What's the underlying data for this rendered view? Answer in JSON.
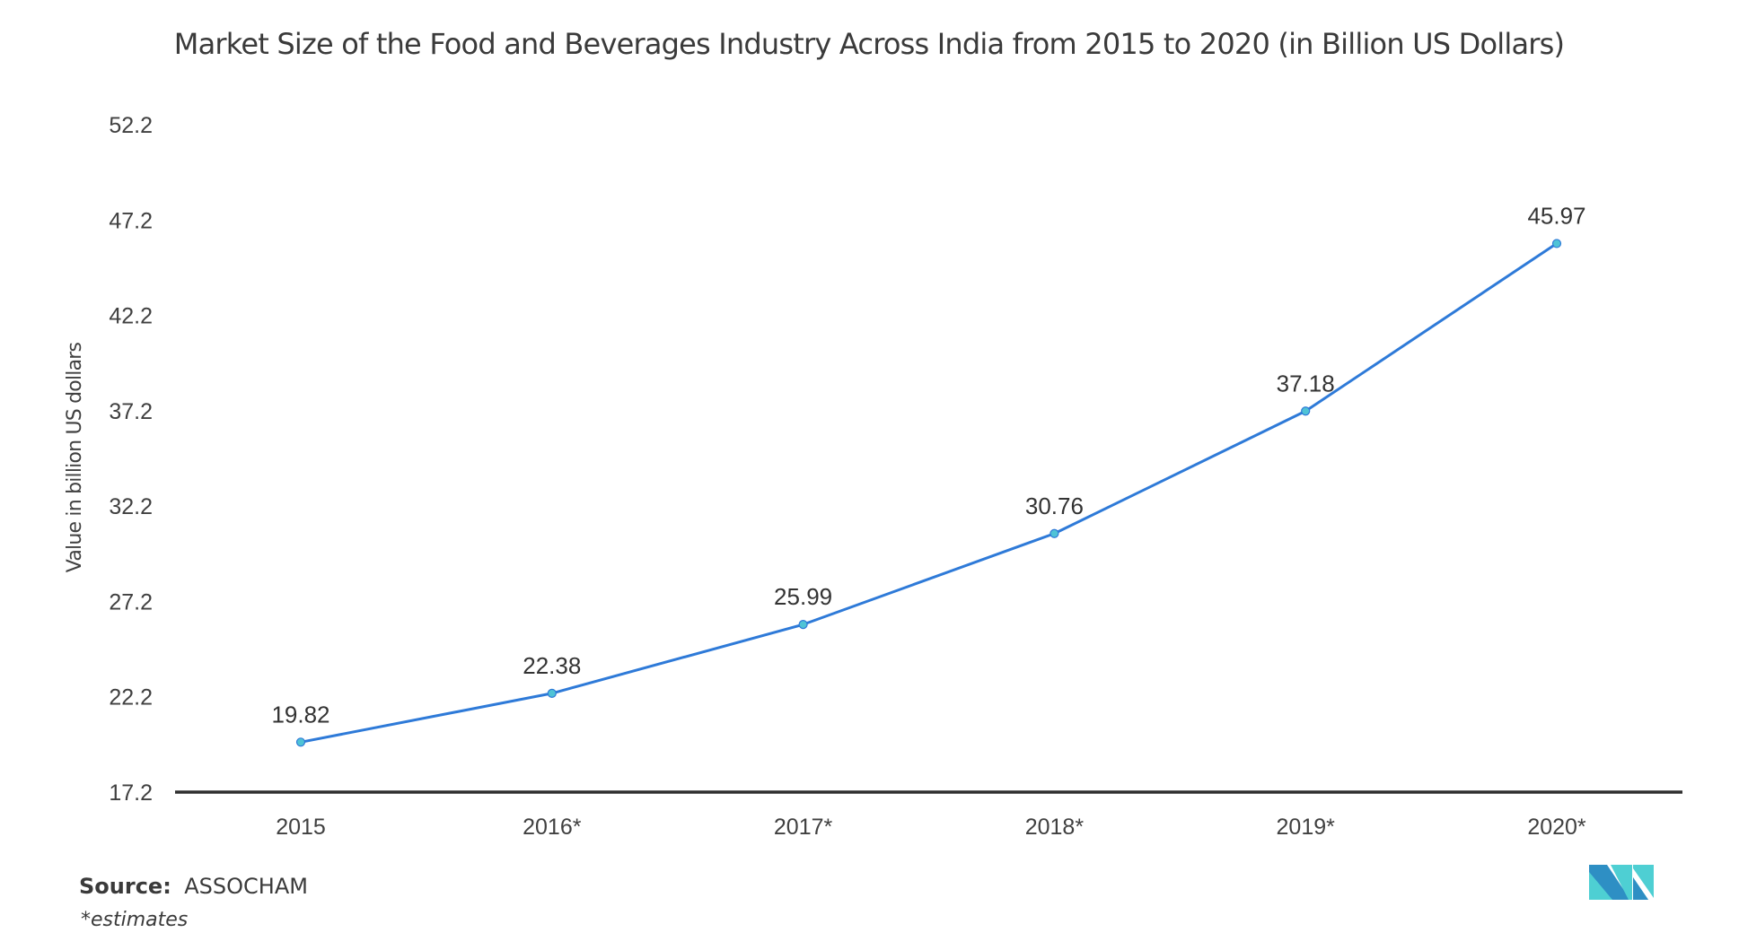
{
  "chart_data": {
    "type": "line",
    "title": "Market Size of the Food and Beverages Industry Across India from 2015 to 2020 (in Billion US Dollars)",
    "xlabel": "",
    "ylabel": "Value in billion US dollars",
    "categories": [
      "2015",
      "2016*",
      "2017*",
      "2018*",
      "2019*",
      "2020*"
    ],
    "series": [
      {
        "name": "Market Size",
        "values": [
          19.82,
          22.38,
          25.99,
          30.76,
          37.18,
          45.97
        ],
        "color": "#2e7ad8",
        "marker_color": "#4fc3d6"
      }
    ],
    "data_labels": [
      "19.82",
      "22.38",
      "25.99",
      "30.76",
      "37.18",
      "45.97"
    ],
    "y_ticks": [
      17.2,
      22.2,
      27.2,
      32.2,
      37.2,
      42.2,
      47.2,
      52.2
    ],
    "y_tick_labels": [
      "17.2",
      "22.2",
      "27.2",
      "32.2",
      "37.2",
      "42.2",
      "47.2",
      "52.2"
    ],
    "ylim": [
      17.2,
      52.2
    ],
    "grid": false,
    "legend": "none"
  },
  "footer": {
    "source_label": "Source:",
    "source_value": "ASSOCHAM",
    "note": "*estimates"
  },
  "logo": {
    "name": "mordor-intelligence-logo",
    "colors": [
      "#2e8fc4",
      "#4ecfd3"
    ]
  }
}
